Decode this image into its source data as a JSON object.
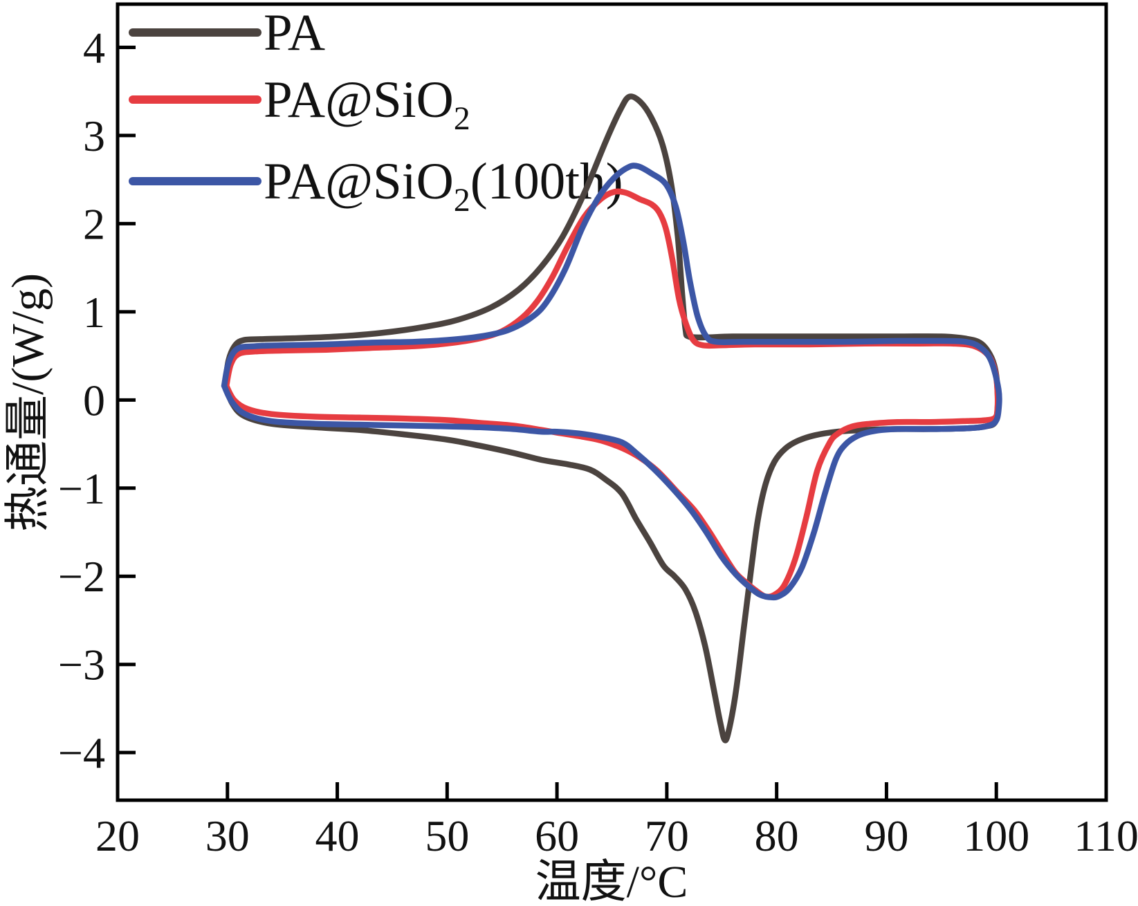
{
  "figure": {
    "background": "#ffffff",
    "frame_color": "#000000"
  },
  "chart_data": {
    "type": "line",
    "title": "",
    "xlabel": "温度/°C",
    "ylabel": "热通量/(W/g)",
    "xlim": [
      20,
      110
    ],
    "ylim": [
      -4.54,
      4.49
    ],
    "grid": false,
    "legend_position": "top-left-inside",
    "x_ticks": [
      {
        "v": 20,
        "label": "20"
      },
      {
        "v": 30,
        "label": "30"
      },
      {
        "v": 40,
        "label": "40"
      },
      {
        "v": 50,
        "label": "50"
      },
      {
        "v": 60,
        "label": "60"
      },
      {
        "v": 70,
        "label": "70"
      },
      {
        "v": 80,
        "label": "80"
      },
      {
        "v": 90,
        "label": "90"
      },
      {
        "v": 100,
        "label": "100"
      },
      {
        "v": 110,
        "label": "110"
      }
    ],
    "y_ticks": [
      {
        "v": 4,
        "label": "4"
      },
      {
        "v": 3,
        "label": "3"
      },
      {
        "v": 2,
        "label": "2"
      },
      {
        "v": 1,
        "label": "1"
      },
      {
        "v": 0,
        "label": "0"
      },
      {
        "v": -1,
        "label": "−1"
      },
      {
        "v": -2,
        "label": "−2"
      },
      {
        "v": -3,
        "label": "−3"
      },
      {
        "v": -4,
        "label": "−4"
      }
    ],
    "series": [
      {
        "name": "PA",
        "label_base": "PA",
        "label_sub": "",
        "label_suffix": "",
        "color": "#4b433f",
        "melting_peak": {
          "temp_c": 66.6,
          "heat_flux": 3.44
        },
        "cooling_peak": {
          "temp_c": 75.3,
          "heat_flux": -3.86
        },
        "points": [
          [
            29.8,
            0.18
          ],
          [
            30.1,
            0.45
          ],
          [
            30.7,
            0.62
          ],
          [
            31.5,
            0.68
          ],
          [
            33,
            0.69
          ],
          [
            36,
            0.7
          ],
          [
            40,
            0.72
          ],
          [
            44,
            0.76
          ],
          [
            48,
            0.83
          ],
          [
            51,
            0.91
          ],
          [
            54,
            1.05
          ],
          [
            56.5,
            1.25
          ],
          [
            58.5,
            1.5
          ],
          [
            60.5,
            1.85
          ],
          [
            62.5,
            2.35
          ],
          [
            64.5,
            2.95
          ],
          [
            65.8,
            3.3
          ],
          [
            66.6,
            3.44
          ],
          [
            67.6,
            3.38
          ],
          [
            68.6,
            3.2
          ],
          [
            69.6,
            2.9
          ],
          [
            70.4,
            2.45
          ],
          [
            71.0,
            1.85
          ],
          [
            71.4,
            1.2
          ],
          [
            71.7,
            0.8
          ],
          [
            72.0,
            0.72
          ],
          [
            73.5,
            0.71
          ],
          [
            76,
            0.72
          ],
          [
            81,
            0.72
          ],
          [
            86,
            0.72
          ],
          [
            91,
            0.72
          ],
          [
            95,
            0.72
          ],
          [
            97,
            0.7
          ],
          [
            98.5,
            0.65
          ],
          [
            99.4,
            0.52
          ],
          [
            99.9,
            0.35
          ],
          [
            100.1,
            0.12
          ],
          [
            100.1,
            -0.12
          ],
          [
            99.85,
            -0.26
          ],
          [
            99,
            -0.3
          ],
          [
            97.5,
            -0.32
          ],
          [
            94,
            -0.33
          ],
          [
            91,
            -0.33
          ],
          [
            88,
            -0.34
          ],
          [
            85.5,
            -0.36
          ],
          [
            83.5,
            -0.4
          ],
          [
            82,
            -0.46
          ],
          [
            80.8,
            -0.55
          ],
          [
            79.8,
            -0.7
          ],
          [
            79.0,
            -0.95
          ],
          [
            78.3,
            -1.35
          ],
          [
            77.7,
            -1.9
          ],
          [
            77.0,
            -2.6
          ],
          [
            76.3,
            -3.3
          ],
          [
            75.7,
            -3.72
          ],
          [
            75.3,
            -3.86
          ],
          [
            74.9,
            -3.68
          ],
          [
            74.3,
            -3.3
          ],
          [
            73.5,
            -2.8
          ],
          [
            72.6,
            -2.4
          ],
          [
            71.7,
            -2.15
          ],
          [
            70.7,
            -2.0
          ],
          [
            69.7,
            -1.88
          ],
          [
            68.5,
            -1.62
          ],
          [
            67.2,
            -1.35
          ],
          [
            65.9,
            -1.06
          ],
          [
            64.4,
            -0.9
          ],
          [
            63,
            -0.79
          ],
          [
            61,
            -0.73
          ],
          [
            58.6,
            -0.68
          ],
          [
            56,
            -0.6
          ],
          [
            53,
            -0.52
          ],
          [
            50,
            -0.45
          ],
          [
            46,
            -0.39
          ],
          [
            42,
            -0.34
          ],
          [
            38,
            -0.31
          ],
          [
            34,
            -0.27
          ],
          [
            31.5,
            -0.18
          ],
          [
            30.4,
            -0.03
          ],
          [
            29.8,
            0.18
          ]
        ]
      },
      {
        "name": "PA@SiO2",
        "label_base": "PA@SiO",
        "label_sub": "2",
        "label_suffix": "",
        "color": "#e63c41",
        "melting_peak": {
          "temp_c": 65.8,
          "heat_flux": 2.37
        },
        "cooling_peak": {
          "temp_c": 79.2,
          "heat_flux": -2.23
        },
        "points": [
          [
            29.9,
            0.16
          ],
          [
            30.3,
            0.4
          ],
          [
            31,
            0.52
          ],
          [
            32.5,
            0.55
          ],
          [
            35,
            0.56
          ],
          [
            39,
            0.57
          ],
          [
            43,
            0.59
          ],
          [
            47,
            0.61
          ],
          [
            50,
            0.64
          ],
          [
            53,
            0.7
          ],
          [
            55,
            0.78
          ],
          [
            56.8,
            0.93
          ],
          [
            58.2,
            1.12
          ],
          [
            59.6,
            1.4
          ],
          [
            61,
            1.75
          ],
          [
            62.5,
            2.08
          ],
          [
            64,
            2.28
          ],
          [
            65.2,
            2.36
          ],
          [
            66.3,
            2.35
          ],
          [
            67.5,
            2.28
          ],
          [
            68.6,
            2.22
          ],
          [
            69.3,
            2.13
          ],
          [
            69.9,
            1.95
          ],
          [
            70.5,
            1.6
          ],
          [
            71.1,
            1.15
          ],
          [
            71.7,
            0.88
          ],
          [
            72.4,
            0.68
          ],
          [
            73.3,
            0.62
          ],
          [
            75,
            0.62
          ],
          [
            78,
            0.63
          ],
          [
            83,
            0.63
          ],
          [
            88,
            0.64
          ],
          [
            93,
            0.64
          ],
          [
            96,
            0.64
          ],
          [
            98,
            0.61
          ],
          [
            99.3,
            0.5
          ],
          [
            99.9,
            0.32
          ],
          [
            100.1,
            0.1
          ],
          [
            100.1,
            -0.1
          ],
          [
            99.9,
            -0.2
          ],
          [
            99,
            -0.23
          ],
          [
            97,
            -0.24
          ],
          [
            94,
            -0.25
          ],
          [
            91,
            -0.25
          ],
          [
            88.5,
            -0.27
          ],
          [
            86.9,
            -0.3
          ],
          [
            85.6,
            -0.38
          ],
          [
            84.8,
            -0.49
          ],
          [
            83.7,
            -0.8
          ],
          [
            82.7,
            -1.33
          ],
          [
            81.7,
            -1.8
          ],
          [
            80.7,
            -2.1
          ],
          [
            79.8,
            -2.21
          ],
          [
            79.0,
            -2.23
          ],
          [
            78.2,
            -2.17
          ],
          [
            77.2,
            -2.07
          ],
          [
            76.2,
            -1.95
          ],
          [
            75,
            -1.72
          ],
          [
            73.8,
            -1.48
          ],
          [
            72.5,
            -1.25
          ],
          [
            71,
            -1.05
          ],
          [
            69.1,
            -0.8
          ],
          [
            67.5,
            -0.65
          ],
          [
            66,
            -0.55
          ],
          [
            64,
            -0.46
          ],
          [
            62,
            -0.41
          ],
          [
            60,
            -0.37
          ],
          [
            58.6,
            -0.34
          ],
          [
            56,
            -0.29
          ],
          [
            53,
            -0.26
          ],
          [
            50.2,
            -0.23
          ],
          [
            46,
            -0.21
          ],
          [
            42,
            -0.2
          ],
          [
            38,
            -0.19
          ],
          [
            34,
            -0.16
          ],
          [
            31.8,
            -0.1
          ],
          [
            30.6,
            0.0
          ],
          [
            29.9,
            0.16
          ]
        ]
      },
      {
        "name": "PA@SiO2(100th)",
        "label_base": "PA@SiO",
        "label_sub": "2",
        "label_suffix": "(100th)",
        "color": "#3c56a5",
        "melting_peak": {
          "temp_c": 67.0,
          "heat_flux": 2.65
        },
        "cooling_peak": {
          "temp_c": 79.6,
          "heat_flux": -2.24
        },
        "points": [
          [
            29.7,
            0.16
          ],
          [
            30.1,
            0.42
          ],
          [
            30.9,
            0.58
          ],
          [
            32.5,
            0.61
          ],
          [
            35,
            0.62
          ],
          [
            39,
            0.63
          ],
          [
            43,
            0.65
          ],
          [
            47,
            0.66
          ],
          [
            50,
            0.68
          ],
          [
            53,
            0.72
          ],
          [
            55.5,
            0.79
          ],
          [
            57.5,
            0.92
          ],
          [
            59,
            1.1
          ],
          [
            60.7,
            1.47
          ],
          [
            62.3,
            1.95
          ],
          [
            63.8,
            2.3
          ],
          [
            65.2,
            2.52
          ],
          [
            66.5,
            2.64
          ],
          [
            67.4,
            2.65
          ],
          [
            68.6,
            2.57
          ],
          [
            69.9,
            2.45
          ],
          [
            70.8,
            2.2
          ],
          [
            71.5,
            1.8
          ],
          [
            72.1,
            1.35
          ],
          [
            72.8,
            0.95
          ],
          [
            73.6,
            0.72
          ],
          [
            74.5,
            0.66
          ],
          [
            77,
            0.66
          ],
          [
            81,
            0.66
          ],
          [
            86,
            0.66
          ],
          [
            91,
            0.67
          ],
          [
            95,
            0.67
          ],
          [
            97.2,
            0.66
          ],
          [
            98.5,
            0.6
          ],
          [
            99.5,
            0.45
          ],
          [
            100.2,
            0.12
          ],
          [
            100.2,
            -0.12
          ],
          [
            99.9,
            -0.25
          ],
          [
            99,
            -0.3
          ],
          [
            97.5,
            -0.32
          ],
          [
            94,
            -0.33
          ],
          [
            91,
            -0.33
          ],
          [
            89,
            -0.35
          ],
          [
            87.5,
            -0.4
          ],
          [
            86.3,
            -0.5
          ],
          [
            85.4,
            -0.67
          ],
          [
            84.4,
            -1.06
          ],
          [
            83.4,
            -1.5
          ],
          [
            82.3,
            -1.9
          ],
          [
            81.2,
            -2.13
          ],
          [
            80.3,
            -2.22
          ],
          [
            79.6,
            -2.24
          ],
          [
            78.5,
            -2.21
          ],
          [
            77.5,
            -2.12
          ],
          [
            76.3,
            -1.98
          ],
          [
            75,
            -1.78
          ],
          [
            73.6,
            -1.5
          ],
          [
            72.2,
            -1.25
          ],
          [
            70.5,
            -1.0
          ],
          [
            68.8,
            -0.78
          ],
          [
            67.2,
            -0.6
          ],
          [
            65.9,
            -0.48
          ],
          [
            64,
            -0.42
          ],
          [
            62,
            -0.38
          ],
          [
            60,
            -0.36
          ],
          [
            58.6,
            -0.36
          ],
          [
            56,
            -0.33
          ],
          [
            53,
            -0.31
          ],
          [
            50.2,
            -0.3
          ],
          [
            46,
            -0.29
          ],
          [
            42,
            -0.28
          ],
          [
            38,
            -0.27
          ],
          [
            34,
            -0.24
          ],
          [
            31.6,
            -0.16
          ],
          [
            30.4,
            -0.02
          ],
          [
            29.7,
            0.16
          ]
        ]
      }
    ]
  }
}
